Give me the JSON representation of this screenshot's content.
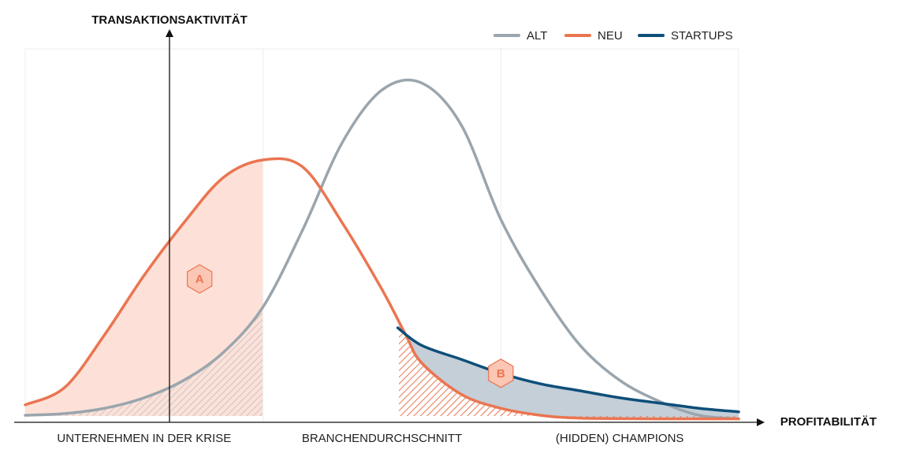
{
  "chart_data": {
    "type": "line",
    "title": "",
    "ylabel": "TRANSAKTIONSAKTIVITÄT",
    "xlabel": "PROFITABILITÄT",
    "xlim": [
      0,
      9
    ],
    "ylim": [
      0,
      1
    ],
    "grid": "vertical-section-lines",
    "legend_position": "top-right",
    "categories": [
      "UNTERNEHMEN IN DER KRISE",
      "BRANCHENDURCHSCHNITT",
      "(HIDDEN) CHAMPIONS"
    ],
    "category_bounds": [
      [
        0,
        3
      ],
      [
        3,
        6
      ],
      [
        6,
        9
      ]
    ],
    "series": [
      {
        "name": "ALT",
        "color": "#9aa5ad",
        "x": [
          0,
          0.5,
          1,
          1.5,
          2,
          2.5,
          3,
          3.5,
          4,
          4.5,
          5,
          5.5,
          6,
          6.5,
          7,
          7.5,
          8,
          8.5,
          9
        ],
        "y": [
          0.02,
          0.025,
          0.04,
          0.07,
          0.12,
          0.2,
          0.33,
          0.55,
          0.8,
          0.95,
          0.97,
          0.85,
          0.58,
          0.38,
          0.22,
          0.12,
          0.06,
          0.02,
          0.01
        ]
      },
      {
        "name": "NEU",
        "color": "#ea7551",
        "x": [
          0,
          0.5,
          1,
          1.5,
          2,
          2.5,
          3,
          3.5,
          4,
          4.5,
          4.8,
          5,
          5.5,
          6,
          6.5,
          7,
          8,
          9
        ],
        "y": [
          0.05,
          0.1,
          0.25,
          0.42,
          0.57,
          0.7,
          0.75,
          0.73,
          0.57,
          0.38,
          0.25,
          0.17,
          0.08,
          0.04,
          0.02,
          0.012,
          0.01,
          0.01
        ]
      },
      {
        "name": "STARTUPS",
        "color": "#0e4f79",
        "x": [
          4.7,
          5,
          5.5,
          6,
          6.5,
          7,
          7.5,
          8,
          8.5,
          9
        ],
        "y": [
          0.27,
          0.22,
          0.18,
          0.14,
          0.11,
          0.09,
          0.07,
          0.055,
          0.04,
          0.03
        ]
      }
    ],
    "annotations": [
      {
        "label": "A",
        "x": 2.2,
        "y": 0.41
      },
      {
        "label": "B",
        "x": 6.0,
        "y": 0.14
      }
    ]
  }
}
